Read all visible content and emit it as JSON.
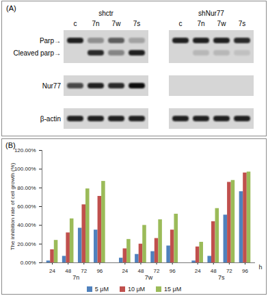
{
  "panel_a": {
    "label": "(A)",
    "groups": [
      {
        "name": "shctr",
        "lanes": [
          "c",
          "7n",
          "7w",
          "7s"
        ]
      },
      {
        "name": "shNur77",
        "lanes": [
          "c",
          "7n",
          "7w",
          "7s"
        ]
      }
    ],
    "blots": [
      {
        "labels": [
          "Parp→",
          "Cleaved parp→"
        ],
        "bands": [
          [
            0.9,
            0.35,
            0.6,
            0.25,
            0.9,
            0.9,
            0.9,
            0.85
          ],
          [
            0,
            0.85,
            0.4,
            0.9,
            0,
            0.15,
            0.15,
            0.1
          ]
        ]
      },
      {
        "labels": [
          "Nur77"
        ],
        "bands": [
          [
            0.7,
            0.9,
            0.85,
            1,
            0,
            0,
            0,
            0
          ]
        ]
      },
      {
        "labels": [
          "β-actin"
        ],
        "bands": [
          [
            0.9,
            0.9,
            0.9,
            0.9,
            0.9,
            0.9,
            0.9,
            0.9
          ]
        ]
      }
    ]
  },
  "chart_data": {
    "type": "bar",
    "title": "(B)",
    "ylabel": "The inhibition rate of cell growth (%)",
    "xlabel": "h",
    "groups": [
      "7n",
      "7w",
      "7s"
    ],
    "categories": [
      "24",
      "48",
      "72",
      "96"
    ],
    "series": [
      {
        "name": "5 μM",
        "color": "#4f81bd",
        "values": [
          [
            2,
            7,
            37,
            35
          ],
          [
            5,
            9,
            12,
            18
          ],
          [
            2,
            7,
            51,
            76
          ]
        ]
      },
      {
        "name": "10 μM",
        "color": "#c0504d",
        "values": [
          [
            14,
            32,
            62,
            71
          ],
          [
            15,
            20,
            26,
            35
          ],
          [
            17,
            44,
            86,
            96
          ]
        ]
      },
      {
        "name": "15 μM",
        "color": "#9bbb59",
        "values": [
          [
            24,
            47,
            79,
            87
          ],
          [
            25,
            40,
            46,
            52
          ],
          [
            22,
            58,
            88,
            97
          ]
        ]
      }
    ],
    "ylim": [
      0,
      120
    ],
    "yticks": [
      {
        "value": 0,
        "label": "0.00%"
      },
      {
        "value": 20,
        "label": "20.00%"
      },
      {
        "value": 40,
        "label": "40.00%"
      },
      {
        "value": 60,
        "label": "60.00%"
      },
      {
        "value": 80,
        "label": "80.00%"
      },
      {
        "value": 100,
        "label": "100.00%"
      },
      {
        "value": 120,
        "label": "120.00%"
      }
    ],
    "grid": false,
    "legend": "bottom"
  }
}
